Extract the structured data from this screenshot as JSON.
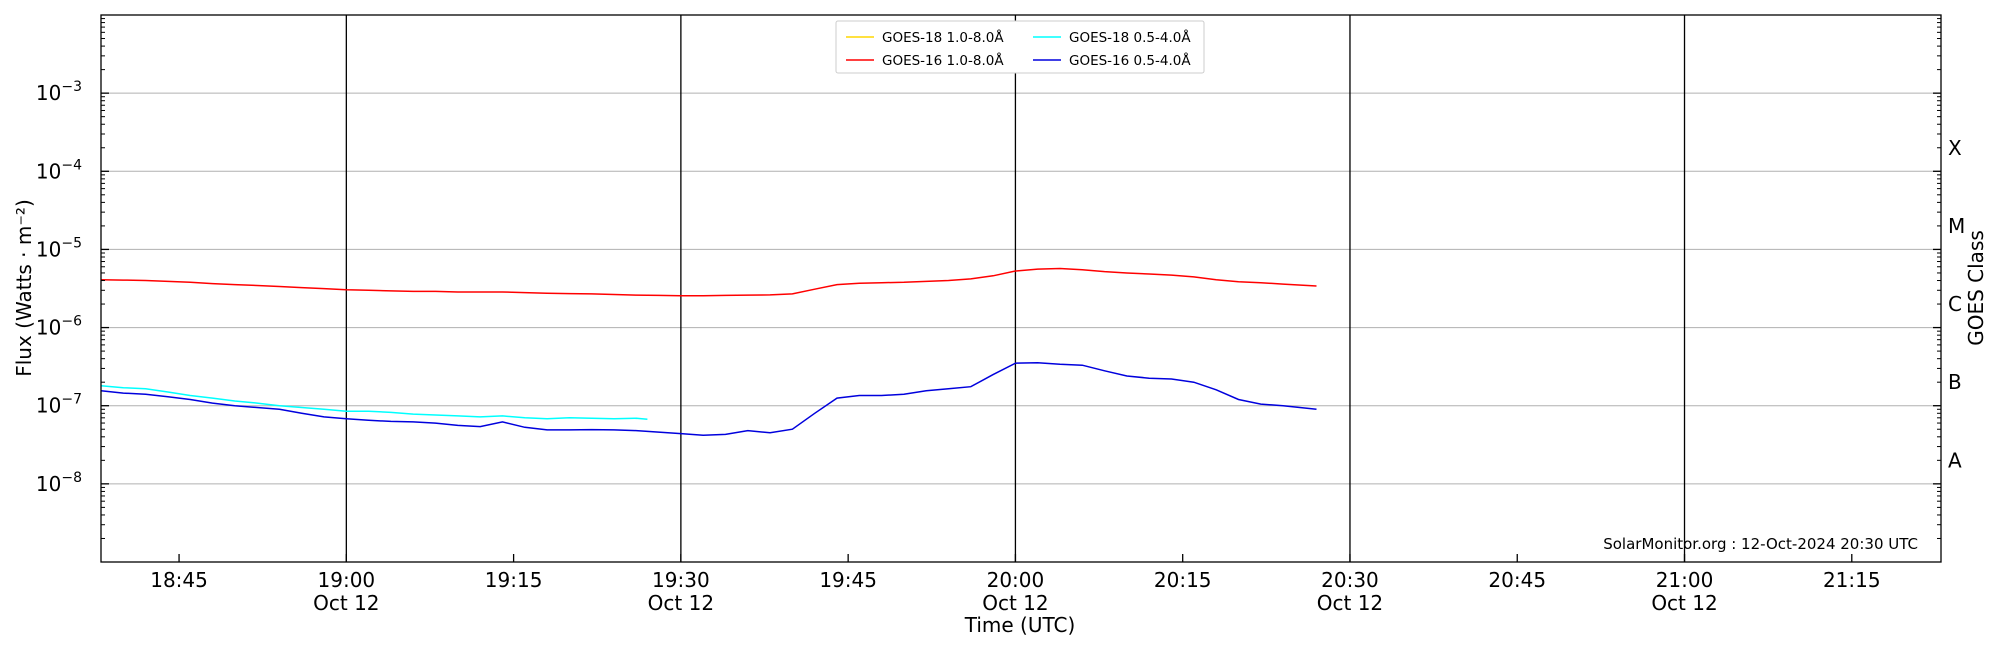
{
  "chart_data": {
    "type": "line",
    "xlabel": "Time (UTC)",
    "ylabel": "Flux (Watts · m⁻²)",
    "ylabel_right": "GOES Class",
    "xlim": [
      "18:38",
      "21:23"
    ],
    "ylim": [
      1e-09,
      0.01
    ],
    "y_scale": "log",
    "grid": "horizontal at decades",
    "legend_position": "top-center",
    "credit": "SolarMonitor.org : 12-Oct-2024 20:30 UTC",
    "x_ticks": [
      {
        "time": "18:45",
        "label": "18:45",
        "date": ""
      },
      {
        "time": "19:00",
        "label": "19:00",
        "date": "Oct 12"
      },
      {
        "time": "19:15",
        "label": "19:15",
        "date": ""
      },
      {
        "time": "19:30",
        "label": "19:30",
        "date": "Oct 12"
      },
      {
        "time": "19:45",
        "label": "19:45",
        "date": ""
      },
      {
        "time": "20:00",
        "label": "20:00",
        "date": "Oct 12"
      },
      {
        "time": "20:15",
        "label": "20:15",
        "date": ""
      },
      {
        "time": "20:30",
        "label": "20:30",
        "date": "Oct 12"
      },
      {
        "time": "20:45",
        "label": "20:45",
        "date": ""
      },
      {
        "time": "21:00",
        "label": "21:00",
        "date": "Oct 12"
      },
      {
        "time": "21:15",
        "label": "21:15",
        "date": ""
      }
    ],
    "y_ticks": [
      {
        "value": 0.001,
        "label_base": "10",
        "label_exp": "−3"
      },
      {
        "value": 0.0001,
        "label_base": "10",
        "label_exp": "−4"
      },
      {
        "value": 1e-05,
        "label_base": "10",
        "label_exp": "−5"
      },
      {
        "value": 1e-06,
        "label_base": "10",
        "label_exp": "−6"
      },
      {
        "value": 1e-07,
        "label_base": "10",
        "label_exp": "−7"
      },
      {
        "value": 1e-08,
        "label_base": "10",
        "label_exp": "−8"
      }
    ],
    "goes_classes": [
      {
        "label": "X",
        "value": 0.0002
      },
      {
        "label": "M",
        "value": 2e-05
      },
      {
        "label": "C",
        "value": 2e-06
      },
      {
        "label": "B",
        "value": 2e-07
      },
      {
        "label": "A",
        "value": 2e-08
      }
    ],
    "vlines": [
      "19:00",
      "19:30",
      "20:00",
      "20:30",
      "21:00"
    ],
    "series": [
      {
        "name": "GOES-18 1.0-8.0Å",
        "color": "#ffd700",
        "x": [],
        "y": []
      },
      {
        "name": "GOES-18 0.5-4.0Å",
        "color": "#00ffff",
        "x": [
          "18:38",
          "18:40",
          "18:42",
          "18:44",
          "18:46",
          "18:48",
          "18:50",
          "18:52",
          "18:54",
          "18:56",
          "18:58",
          "19:00",
          "19:02",
          "19:04",
          "19:06",
          "19:08",
          "19:10",
          "19:12",
          "19:14",
          "19:16",
          "19:18",
          "19:20",
          "19:22",
          "19:24",
          "19:26",
          "19:27"
        ],
        "y": [
          1.8e-07,
          1.7e-07,
          1.65e-07,
          1.5e-07,
          1.35e-07,
          1.25e-07,
          1.15e-07,
          1.08e-07,
          1e-07,
          9.5e-08,
          9e-08,
          8.5e-08,
          8.5e-08,
          8.2e-08,
          7.8e-08,
          7.6e-08,
          7.4e-08,
          7.2e-08,
          7.4e-08,
          7e-08,
          6.8e-08,
          7e-08,
          6.9e-08,
          6.8e-08,
          6.9e-08,
          6.7e-08
        ]
      },
      {
        "name": "GOES-16 1.0-8.0Å",
        "color": "#ff0000",
        "x": [
          "18:38",
          "18:40",
          "18:42",
          "18:44",
          "18:46",
          "18:48",
          "18:50",
          "18:52",
          "18:54",
          "18:56",
          "18:58",
          "19:00",
          "19:02",
          "19:04",
          "19:06",
          "19:08",
          "19:10",
          "19:12",
          "19:14",
          "19:16",
          "19:18",
          "19:20",
          "19:22",
          "19:24",
          "19:26",
          "19:28",
          "19:30",
          "19:32",
          "19:34",
          "19:36",
          "19:38",
          "19:40",
          "19:42",
          "19:44",
          "19:46",
          "19:48",
          "19:50",
          "19:52",
          "19:54",
          "19:56",
          "19:58",
          "20:00",
          "20:02",
          "20:04",
          "20:06",
          "20:08",
          "20:10",
          "20:12",
          "20:14",
          "20:16",
          "20:18",
          "20:20",
          "20:22",
          "20:24",
          "20:27"
        ],
        "y": [
          4.1e-06,
          4.05e-06,
          4e-06,
          3.9e-06,
          3.8e-06,
          3.65e-06,
          3.55e-06,
          3.45e-06,
          3.35e-06,
          3.25e-06,
          3.15e-06,
          3.05e-06,
          3e-06,
          2.95e-06,
          2.9e-06,
          2.9e-06,
          2.85e-06,
          2.85e-06,
          2.85e-06,
          2.8e-06,
          2.75e-06,
          2.72e-06,
          2.7e-06,
          2.65e-06,
          2.6e-06,
          2.58e-06,
          2.55e-06,
          2.55e-06,
          2.58e-06,
          2.6e-06,
          2.62e-06,
          2.7e-06,
          3.1e-06,
          3.55e-06,
          3.7e-06,
          3.75e-06,
          3.8e-06,
          3.9e-06,
          4e-06,
          4.2e-06,
          4.6e-06,
          5.3e-06,
          5.6e-06,
          5.7e-06,
          5.5e-06,
          5.2e-06,
          5e-06,
          4.85e-06,
          4.7e-06,
          4.45e-06,
          4.1e-06,
          3.85e-06,
          3.75e-06,
          3.6e-06,
          3.4e-06
        ]
      },
      {
        "name": "GOES-16 0.5-4.0Å",
        "color": "#0000dd",
        "x": [
          "18:38",
          "18:40",
          "18:42",
          "18:44",
          "18:46",
          "18:48",
          "18:50",
          "18:52",
          "18:54",
          "18:56",
          "18:58",
          "19:00",
          "19:02",
          "19:04",
          "19:06",
          "19:08",
          "19:10",
          "19:12",
          "19:14",
          "19:16",
          "19:18",
          "19:20",
          "19:22",
          "19:24",
          "19:26",
          "19:28",
          "19:30",
          "19:32",
          "19:34",
          "19:36",
          "19:38",
          "19:40",
          "19:42",
          "19:44",
          "19:46",
          "19:48",
          "19:50",
          "19:52",
          "19:54",
          "19:56",
          "19:58",
          "20:00",
          "20:02",
          "20:04",
          "20:06",
          "20:08",
          "20:10",
          "20:12",
          "20:14",
          "20:16",
          "20:18",
          "20:20",
          "20:22",
          "20:24",
          "20:27"
        ],
        "y": [
          1.55e-07,
          1.45e-07,
          1.4e-07,
          1.3e-07,
          1.2e-07,
          1.08e-07,
          1e-07,
          9.5e-08,
          9e-08,
          8e-08,
          7.2e-08,
          6.8e-08,
          6.5e-08,
          6.3e-08,
          6.2e-08,
          6e-08,
          5.6e-08,
          5.4e-08,
          6.2e-08,
          5.3e-08,
          4.9e-08,
          4.9e-08,
          4.95e-08,
          4.9e-08,
          4.8e-08,
          4.6e-08,
          4.4e-08,
          4.2e-08,
          4.3e-08,
          4.8e-08,
          4.5e-08,
          5e-08,
          8e-08,
          1.25e-07,
          1.35e-07,
          1.35e-07,
          1.4e-07,
          1.55e-07,
          1.65e-07,
          1.75e-07,
          2.5e-07,
          3.5e-07,
          3.55e-07,
          3.4e-07,
          3.3e-07,
          2.8e-07,
          2.4e-07,
          2.25e-07,
          2.2e-07,
          2e-07,
          1.6e-07,
          1.2e-07,
          1.05e-07,
          1e-07,
          9e-08
        ]
      }
    ]
  }
}
